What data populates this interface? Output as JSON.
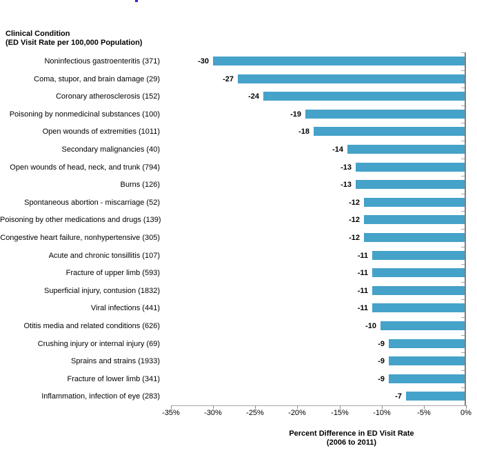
{
  "header": {
    "line1": "Clinical Condition",
    "line2": "(ED Visit Rate per 100,000 Population)"
  },
  "chart_data": {
    "type": "bar",
    "orientation": "horizontal",
    "title": "",
    "categories": [
      "Noninfectious gastroenteritis (371)",
      "Coma, stupor, and brain damage (29)",
      "Coronary atherosclerosis (152)",
      "Poisoning by nonmedicinal substances (100)",
      "Open wounds of extremities (1011)",
      "Secondary malignancies (40)",
      "Open wounds of head, neck, and trunk (794)",
      "Burns (126)",
      "Spontaneous abortion - miscarriage (52)",
      "Poisoning by other medications and drugs (139)",
      "Congestive heart failure, nonhypertensive (305)",
      "Acute and chronic tonsillitis (107)",
      "Fracture of upper limb (593)",
      "Superficial injury, contusion (1832)",
      "Viral infections (441)",
      "Otitis media and related conditions (626)",
      "Crushing injury or internal injury (69)",
      "Sprains and strains (1933)",
      "Fracture of lower limb (341)",
      "Inflammation, infection of eye (283)"
    ],
    "values": [
      -30,
      -27,
      -24,
      -19,
      -18,
      -14,
      -13,
      -13,
      -12,
      -12,
      -12,
      -11,
      -11,
      -11,
      -11,
      -10,
      -9,
      -9,
      -9,
      -7
    ],
    "xlim": [
      -35,
      0
    ],
    "x_ticks": [
      "-35%",
      "-30%",
      "-25%",
      "-20%",
      "-15%",
      "-10%",
      "-5%",
      "0%"
    ],
    "xlabel_line1": "Percent Difference in ED Visit Rate",
    "xlabel_line2": "(2006 to 2011)",
    "ylabel_line1": "Clinical Condition",
    "ylabel_line2": "(ED Visit Rate per 100,000 Population)",
    "bar_color": "#45a2c9",
    "axis_line_color": "#7f7f7f",
    "grid": "off",
    "legend": "none"
  }
}
